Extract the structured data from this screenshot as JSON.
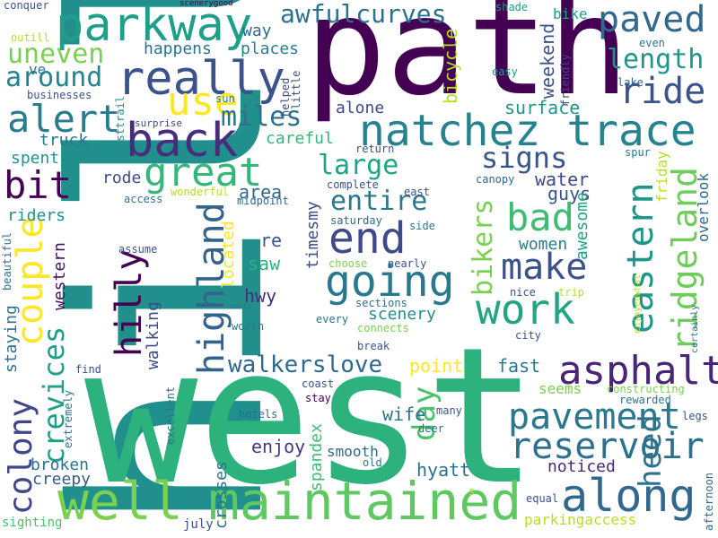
{
  "words": [
    {
      "id": "hill",
      "text": "hill",
      "color": "#21908d"
    },
    {
      "id": "west",
      "text": "west",
      "color": "#2db27d"
    },
    {
      "id": "path",
      "text": "path",
      "color": "#440154"
    },
    {
      "id": "natchez",
      "text": "natchez trace",
      "color": "#26828e"
    },
    {
      "id": "well",
      "text": "well",
      "color": "#7ad151"
    },
    {
      "id": "maintained",
      "text": "maintained",
      "color": "#5ec962"
    },
    {
      "id": "parkway",
      "text": "parkway",
      "color": "#1f9e89"
    },
    {
      "id": "really",
      "text": "really",
      "color": "#3b528b"
    },
    {
      "id": "back",
      "text": "back",
      "color": "#472d7b"
    },
    {
      "id": "great",
      "text": "great",
      "color": "#35b779"
    },
    {
      "id": "end",
      "text": "end",
      "color": "#3e4a89"
    },
    {
      "id": "going",
      "text": "going",
      "color": "#2a788e"
    },
    {
      "id": "make",
      "text": "make",
      "color": "#3b528b"
    },
    {
      "id": "work",
      "text": "work",
      "color": "#21a585"
    },
    {
      "id": "along",
      "text": "along",
      "color": "#31688e"
    },
    {
      "id": "pavement",
      "text": "pavement",
      "color": "#2a788e"
    },
    {
      "id": "reservoir",
      "text": "reservoir",
      "color": "#2d708e"
    },
    {
      "id": "asphalt",
      "text": "asphalt",
      "color": "#482576"
    },
    {
      "id": "awfulcurves",
      "text": "awfulcurves",
      "color": "#2c728e"
    },
    {
      "id": "paved",
      "text": "paved",
      "color": "#31688e"
    },
    {
      "id": "ride",
      "text": "ride",
      "color": "#3b528b"
    },
    {
      "id": "length",
      "text": "length",
      "color": "#1f968b"
    },
    {
      "id": "alert",
      "text": "alert",
      "color": "#287c8e"
    },
    {
      "id": "use",
      "text": "use",
      "color": "#fde725"
    },
    {
      "id": "miles",
      "text": "miles",
      "color": "#2c728e"
    },
    {
      "id": "bit",
      "text": "bit",
      "color": "#440154"
    },
    {
      "id": "uneven",
      "text": "uneven",
      "color": "#7ad151"
    },
    {
      "id": "around",
      "text": "around",
      "color": "#25848e"
    },
    {
      "id": "large",
      "text": "large",
      "color": "#20a486"
    },
    {
      "id": "entire",
      "text": "entire",
      "color": "#2a788e"
    },
    {
      "id": "signs",
      "text": "signs",
      "color": "#39568c"
    },
    {
      "id": "bad",
      "text": "bad",
      "color": "#3fbc73"
    },
    {
      "id": "couple",
      "text": "couple",
      "color": "#fde725"
    },
    {
      "id": "hilly",
      "text": "hilly",
      "color": "#440154"
    },
    {
      "id": "highland",
      "text": "highland",
      "color": "#33638d"
    },
    {
      "id": "colony",
      "text": "colony",
      "color": "#404688"
    },
    {
      "id": "crevices",
      "text": "crevices",
      "color": "#1fa187"
    },
    {
      "id": "eastern",
      "text": "eastern",
      "color": "#1f968b"
    },
    {
      "id": "ridgeland",
      "text": "ridgeland",
      "color": "#6ccd5a"
    },
    {
      "id": "bikers",
      "text": "bikers",
      "color": "#7ad151"
    },
    {
      "id": "day",
      "text": "day",
      "color": "#4ac16d"
    },
    {
      "id": "heed",
      "text": "heed",
      "color": "#2c728e"
    },
    {
      "id": "walkerslove",
      "text": "walkerslove",
      "color": "#31688e"
    },
    {
      "id": "happens",
      "text": "happens",
      "color": "#2c728e"
    },
    {
      "id": "places",
      "text": "places",
      "color": "#277f8e"
    },
    {
      "id": "way",
      "text": "way",
      "color": "#31688e"
    },
    {
      "id": "weekend",
      "text": "weekend",
      "color": "#3b528b"
    },
    {
      "id": "bicycle",
      "text": "bicycle",
      "color": "#b5de2b"
    },
    {
      "id": "surface",
      "text": "surface",
      "color": "#1f968b"
    },
    {
      "id": "alone",
      "text": "alone",
      "color": "#3e4a89"
    },
    {
      "id": "careful",
      "text": "careful",
      "color": "#35b779"
    },
    {
      "id": "truck",
      "text": "truck",
      "color": "#2a788e"
    },
    {
      "id": "spent",
      "text": "spent",
      "color": "#1f968b"
    },
    {
      "id": "rode",
      "text": "rode",
      "color": "#3e4a89"
    },
    {
      "id": "riders",
      "text": "riders",
      "color": "#21908d"
    },
    {
      "id": "water",
      "text": "water",
      "color": "#3e4a89"
    },
    {
      "id": "guys",
      "text": "guys",
      "color": "#3b528b"
    },
    {
      "id": "awesome",
      "text": "awesome",
      "color": "#1fa187"
    },
    {
      "id": "women",
      "text": "women",
      "color": "#287d8e"
    },
    {
      "id": "area",
      "text": "area",
      "color": "#31688e"
    },
    {
      "id": "timesmy",
      "text": "timesmy",
      "color": "#3e4a89"
    },
    {
      "id": "western",
      "text": "western",
      "color": "#471063"
    },
    {
      "id": "re",
      "text": "re",
      "color": "#39568c"
    },
    {
      "id": "saw",
      "text": "saw",
      "color": "#2db27d"
    },
    {
      "id": "hwy",
      "text": "hwy",
      "color": "#472c7a"
    },
    {
      "id": "located",
      "text": "located",
      "color": "#fde725"
    },
    {
      "id": "scenery",
      "text": "scenery",
      "color": "#21908d"
    },
    {
      "id": "walking",
      "text": "walking",
      "color": "#3e4a89"
    },
    {
      "id": "staying",
      "text": "staying",
      "color": "#2c728e"
    },
    {
      "id": "point",
      "text": "point",
      "color": "#fde725"
    },
    {
      "id": "fast",
      "text": "fast",
      "color": "#2a788e"
    },
    {
      "id": "seems",
      "text": "seems",
      "color": "#7ad151"
    },
    {
      "id": "wife",
      "text": "wife",
      "color": "#2c728e"
    },
    {
      "id": "enjoy",
      "text": "enjoy",
      "color": "#443a83"
    },
    {
      "id": "broken",
      "text": "broken",
      "color": "#2c728e"
    },
    {
      "id": "creepy",
      "text": "creepy",
      "color": "#355f8d"
    },
    {
      "id": "spandex",
      "text": "spandex",
      "color": "#3fbc73"
    },
    {
      "id": "smooth",
      "text": "smooth",
      "color": "#31688e"
    },
    {
      "id": "hyatt",
      "text": "hyatt",
      "color": "#2c728e"
    },
    {
      "id": "noticed",
      "text": "noticed",
      "color": "#482878"
    },
    {
      "id": "crosses",
      "text": "crosses",
      "color": "#2c728e"
    },
    {
      "id": "parkingaccess",
      "text": "parkingaccess",
      "color": "#b5de2b"
    },
    {
      "id": "sighting",
      "text": "sighting",
      "color": "#4ac16d"
    },
    {
      "id": "july",
      "text": "july",
      "color": "#3b528b"
    },
    {
      "id": "conquer",
      "text": "conquer",
      "color": "#3b528b"
    },
    {
      "id": "scenerygood",
      "text": "scenerygood",
      "color": "#440154"
    },
    {
      "id": "shade",
      "text": "shade",
      "color": "#1fa187"
    },
    {
      "id": "bike",
      "text": "bike",
      "color": "#1fa187"
    },
    {
      "id": "outill",
      "text": "outill",
      "color": "#b5de2b"
    },
    {
      "id": "ve",
      "text": "ve",
      "color": "#2a788e"
    },
    {
      "id": "businesses",
      "text": "businesses",
      "color": "#3b528b"
    },
    {
      "id": "sun",
      "text": "sun",
      "color": "#2c728e"
    },
    {
      "id": "helped",
      "text": "helped",
      "color": "#3e4a89"
    },
    {
      "id": "little",
      "text": "little",
      "color": "#3b528b"
    },
    {
      "id": "listtrail",
      "text": "listtrail",
      "color": "#21908d"
    },
    {
      "id": "surprise",
      "text": "surprise",
      "color": "#3e4a89"
    },
    {
      "id": "easy",
      "text": "easy",
      "color": "#1fa187"
    },
    {
      "id": "friendly",
      "text": "friendly",
      "color": "#3e4a89"
    },
    {
      "id": "even",
      "text": "even",
      "color": "#2a788e"
    },
    {
      "id": "lake",
      "text": "lake",
      "color": "#31688e"
    },
    {
      "id": "return",
      "text": "return",
      "color": "#3b528b"
    },
    {
      "id": "complete",
      "text": "complete",
      "color": "#3b528b"
    },
    {
      "id": "canopy",
      "text": "canopy",
      "color": "#31688e"
    },
    {
      "id": "spur",
      "text": "spur",
      "color": "#2a788e"
    },
    {
      "id": "friday",
      "text": "friday",
      "color": "#b5de2b"
    },
    {
      "id": "overlook",
      "text": "overlook",
      "color": "#31688e"
    },
    {
      "id": "wonderful",
      "text": "wonderful",
      "color": "#b5de2b"
    },
    {
      "id": "access",
      "text": "access",
      "color": "#2a788e"
    },
    {
      "id": "midpoint",
      "text": "midpoint",
      "color": "#31688e"
    },
    {
      "id": "east",
      "text": "east",
      "color": "#3b528b"
    },
    {
      "id": "saturday",
      "text": "saturday",
      "color": "#31688e"
    },
    {
      "id": "side",
      "text": "side",
      "color": "#2a788e"
    },
    {
      "id": "assume",
      "text": "assume",
      "color": "#3b528b"
    },
    {
      "id": "beautiful",
      "text": "beautiful",
      "color": "#2c728e"
    },
    {
      "id": "choose",
      "text": "choose",
      "color": "#7ad151"
    },
    {
      "id": "nearly",
      "text": "nearly",
      "color": "#3b528b"
    },
    {
      "id": "nice",
      "text": "nice",
      "color": "#3b528b"
    },
    {
      "id": "trip",
      "text": "trip",
      "color": "#b5de2b"
    },
    {
      "id": "enjoyedwhat",
      "text": "enjoyedwhat",
      "color": "#b5de2b"
    },
    {
      "id": "multi",
      "text": "multi",
      "color": "#2c728e"
    },
    {
      "id": "sections",
      "text": "sections",
      "color": "#2c728e"
    },
    {
      "id": "every",
      "text": "every",
      "color": "#2c728e"
    },
    {
      "id": "connects",
      "text": "connects",
      "color": "#7ad151"
    },
    {
      "id": "worth",
      "text": "worth",
      "color": "#2a788e"
    },
    {
      "id": "certainly",
      "text": "certainly",
      "color": "#31688e"
    },
    {
      "id": "city",
      "text": "city",
      "color": "#3b528b"
    },
    {
      "id": "break",
      "text": "break",
      "color": "#3b528b"
    },
    {
      "id": "find",
      "text": "find",
      "color": "#3e4a89"
    },
    {
      "id": "coast",
      "text": "coast",
      "color": "#3b528b"
    },
    {
      "id": "constructing",
      "text": "constructing",
      "color": "#7ad151"
    },
    {
      "id": "rewarded",
      "text": "rewarded",
      "color": "#2a788e"
    },
    {
      "id": "excellent",
      "text": "excellent",
      "color": "#2c728e"
    },
    {
      "id": "extremely",
      "text": "extremely",
      "color": "#2c728e"
    },
    {
      "id": "stay",
      "text": "stay",
      "color": "#440154"
    },
    {
      "id": "hotels",
      "text": "hotels",
      "color": "#31688e"
    },
    {
      "id": "many",
      "text": "many",
      "color": "#3b528b"
    },
    {
      "id": "legs",
      "text": "legs",
      "color": "#3b528b"
    },
    {
      "id": "deer",
      "text": "deer",
      "color": "#2c728e"
    },
    {
      "id": "old",
      "text": "old",
      "color": "#2a788e"
    },
    {
      "id": "s",
      "text": "s",
      "color": "#b5de2b"
    },
    {
      "id": "equal",
      "text": "equal",
      "color": "#3b528b"
    },
    {
      "id": "afternoon",
      "text": "afternoon",
      "color": "#31688e"
    }
  ]
}
